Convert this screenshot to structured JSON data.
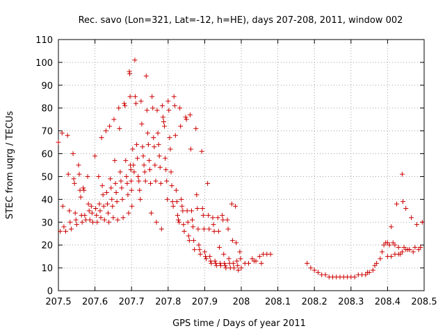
{
  "chart_data": {
    "type": "scatter",
    "title": "Rec. savo (Lon=321, Lat=-12, h=HE), days 207-208, 2011, window 002",
    "xlabel": "GPS time / Days of year 2011",
    "ylabel": "STEC from uqrg / TECUs",
    "xlim": [
      207.5,
      208.5
    ],
    "ylim": [
      0,
      110
    ],
    "xticks": [
      207.5,
      207.6,
      207.7,
      207.8,
      207.9,
      208.0,
      208.1,
      208.2,
      208.3,
      208.4,
      208.5
    ],
    "xtick_labels": [
      "207.5",
      "207.6",
      "207.7",
      "207.8",
      "207.9",
      "208",
      "208.1",
      "208.2",
      "208.3",
      "208.4",
      "208.5"
    ],
    "yticks": [
      0,
      10,
      20,
      30,
      40,
      50,
      60,
      70,
      80,
      90,
      100,
      110
    ],
    "ytick_labels": [
      "0",
      "10",
      "20",
      "30",
      "40",
      "50",
      "60",
      "70",
      "80",
      "90",
      "100",
      "110"
    ],
    "marker": "+",
    "color": "#cc0000",
    "points": [
      [
        207.5,
        65
      ],
      [
        207.505,
        26
      ],
      [
        207.51,
        69
      ],
      [
        207.512,
        37
      ],
      [
        207.515,
        28
      ],
      [
        207.52,
        26
      ],
      [
        207.525,
        68
      ],
      [
        207.527,
        51
      ],
      [
        207.53,
        35
      ],
      [
        207.532,
        30
      ],
      [
        207.535,
        27
      ],
      [
        207.54,
        60
      ],
      [
        207.542,
        49
      ],
      [
        207.544,
        47
      ],
      [
        207.546,
        34
      ],
      [
        207.548,
        31
      ],
      [
        207.55,
        29
      ],
      [
        207.555,
        55
      ],
      [
        207.557,
        51
      ],
      [
        207.559,
        44
      ],
      [
        207.561,
        41
      ],
      [
        207.563,
        33
      ],
      [
        207.565,
        30
      ],
      [
        207.568,
        45
      ],
      [
        207.57,
        44
      ],
      [
        207.572,
        33
      ],
      [
        207.575,
        31
      ],
      [
        207.58,
        50
      ],
      [
        207.582,
        38
      ],
      [
        207.584,
        35
      ],
      [
        207.586,
        31
      ],
      [
        207.59,
        37
      ],
      [
        207.592,
        34
      ],
      [
        207.594,
        30
      ],
      [
        207.6,
        59
      ],
      [
        207.602,
        36
      ],
      [
        207.604,
        33
      ],
      [
        207.606,
        30
      ],
      [
        207.61,
        50
      ],
      [
        207.612,
        38
      ],
      [
        207.614,
        35
      ],
      [
        207.616,
        32
      ],
      [
        207.618,
        67
      ],
      [
        207.62,
        46
      ],
      [
        207.622,
        42
      ],
      [
        207.624,
        37
      ],
      [
        207.626,
        31
      ],
      [
        207.63,
        70
      ],
      [
        207.632,
        43
      ],
      [
        207.634,
        38
      ],
      [
        207.636,
        34
      ],
      [
        207.638,
        30
      ],
      [
        207.64,
        72
      ],
      [
        207.642,
        49
      ],
      [
        207.644,
        45
      ],
      [
        207.646,
        40
      ],
      [
        207.648,
        37
      ],
      [
        207.65,
        32
      ],
      [
        207.652,
        75
      ],
      [
        207.654,
        57
      ],
      [
        207.656,
        47
      ],
      [
        207.658,
        43
      ],
      [
        207.66,
        39
      ],
      [
        207.662,
        31
      ],
      [
        207.665,
        80
      ],
      [
        207.667,
        71
      ],
      [
        207.669,
        52
      ],
      [
        207.671,
        48
      ],
      [
        207.673,
        45
      ],
      [
        207.675,
        40
      ],
      [
        207.677,
        32
      ],
      [
        207.68,
        82
      ],
      [
        207.682,
        81
      ],
      [
        207.684,
        57
      ],
      [
        207.686,
        50
      ],
      [
        207.688,
        47
      ],
      [
        207.69,
        42
      ],
      [
        207.692,
        34
      ],
      [
        207.694,
        96
      ],
      [
        207.695,
        95
      ],
      [
        207.696,
        85
      ],
      [
        207.697,
        55
      ],
      [
        207.698,
        53
      ],
      [
        207.699,
        48
      ],
      [
        207.7,
        44
      ],
      [
        207.701,
        37
      ],
      [
        207.703,
        62
      ],
      [
        207.705,
        55
      ],
      [
        207.707,
        52
      ],
      [
        207.709,
        101
      ],
      [
        207.71,
        85
      ],
      [
        207.712,
        82
      ],
      [
        207.714,
        64
      ],
      [
        207.716,
        58
      ],
      [
        207.718,
        50
      ],
      [
        207.72,
        48
      ],
      [
        207.722,
        44
      ],
      [
        207.724,
        40
      ],
      [
        207.726,
        83
      ],
      [
        207.728,
        73
      ],
      [
        207.73,
        63
      ],
      [
        207.732,
        59
      ],
      [
        207.734,
        55
      ],
      [
        207.736,
        52
      ],
      [
        207.738,
        48
      ],
      [
        207.74,
        94
      ],
      [
        207.742,
        79
      ],
      [
        207.744,
        69
      ],
      [
        207.746,
        64
      ],
      [
        207.748,
        57
      ],
      [
        207.75,
        53
      ],
      [
        207.752,
        47
      ],
      [
        207.754,
        34
      ],
      [
        207.756,
        85
      ],
      [
        207.758,
        80
      ],
      [
        207.76,
        67
      ],
      [
        207.762,
        63
      ],
      [
        207.764,
        55
      ],
      [
        207.766,
        48
      ],
      [
        207.768,
        30
      ],
      [
        207.77,
        79
      ],
      [
        207.772,
        69
      ],
      [
        207.774,
        64
      ],
      [
        207.776,
        59
      ],
      [
        207.778,
        54
      ],
      [
        207.78,
        47
      ],
      [
        207.782,
        27
      ],
      [
        207.784,
        81
      ],
      [
        207.786,
        76
      ],
      [
        207.788,
        74
      ],
      [
        207.79,
        72
      ],
      [
        207.792,
        58
      ],
      [
        207.794,
        53
      ],
      [
        207.796,
        48
      ],
      [
        207.798,
        40
      ],
      [
        207.8,
        83
      ],
      [
        207.802,
        79
      ],
      [
        207.804,
        67
      ],
      [
        207.806,
        62
      ],
      [
        207.808,
        52
      ],
      [
        207.81,
        46
      ],
      [
        207.812,
        39
      ],
      [
        207.814,
        37
      ],
      [
        207.816,
        85
      ],
      [
        207.818,
        81
      ],
      [
        207.82,
        68
      ],
      [
        207.822,
        44
      ],
      [
        207.824,
        39
      ],
      [
        207.826,
        33
      ],
      [
        207.828,
        31
      ],
      [
        207.83,
        30
      ],
      [
        207.832,
        80
      ],
      [
        207.834,
        72
      ],
      [
        207.836,
        40
      ],
      [
        207.838,
        37
      ],
      [
        207.84,
        35
      ],
      [
        207.842,
        29
      ],
      [
        207.844,
        26
      ],
      [
        207.848,
        76
      ],
      [
        207.85,
        75
      ],
      [
        207.852,
        35
      ],
      [
        207.854,
        30
      ],
      [
        207.856,
        24
      ],
      [
        207.858,
        22
      ],
      [
        207.86,
        77
      ],
      [
        207.862,
        62
      ],
      [
        207.864,
        35
      ],
      [
        207.866,
        31
      ],
      [
        207.868,
        28
      ],
      [
        207.87,
        22
      ],
      [
        207.872,
        18
      ],
      [
        207.876,
        71
      ],
      [
        207.878,
        42
      ],
      [
        207.88,
        36
      ],
      [
        207.882,
        27
      ],
      [
        207.884,
        20
      ],
      [
        207.886,
        18
      ],
      [
        207.888,
        16
      ],
      [
        207.892,
        61
      ],
      [
        207.894,
        36
      ],
      [
        207.896,
        33
      ],
      [
        207.898,
        27
      ],
      [
        207.9,
        17
      ],
      [
        207.902,
        15
      ],
      [
        207.904,
        14
      ],
      [
        207.908,
        47
      ],
      [
        207.91,
        33
      ],
      [
        207.912,
        27
      ],
      [
        207.914,
        15
      ],
      [
        207.916,
        13
      ],
      [
        207.918,
        12
      ],
      [
        207.922,
        32
      ],
      [
        207.924,
        29
      ],
      [
        207.926,
        26
      ],
      [
        207.928,
        13
      ],
      [
        207.93,
        12
      ],
      [
        207.932,
        11
      ],
      [
        207.936,
        32
      ],
      [
        207.938,
        26
      ],
      [
        207.94,
        19
      ],
      [
        207.942,
        12
      ],
      [
        207.944,
        11
      ],
      [
        207.948,
        33
      ],
      [
        207.95,
        31
      ],
      [
        207.952,
        16
      ],
      [
        207.954,
        12
      ],
      [
        207.956,
        11
      ],
      [
        207.958,
        10
      ],
      [
        207.962,
        31
      ],
      [
        207.964,
        27
      ],
      [
        207.966,
        14
      ],
      [
        207.968,
        12
      ],
      [
        207.97,
        10
      ],
      [
        207.974,
        38
      ],
      [
        207.976,
        22
      ],
      [
        207.978,
        12
      ],
      [
        207.98,
        10
      ],
      [
        207.984,
        37
      ],
      [
        207.986,
        21
      ],
      [
        207.988,
        13
      ],
      [
        207.99,
        11
      ],
      [
        207.992,
        9
      ],
      [
        207.996,
        17
      ],
      [
        207.998,
        14
      ],
      [
        208.0,
        10
      ],
      [
        208.01,
        12
      ],
      [
        208.02,
        12
      ],
      [
        208.03,
        14
      ],
      [
        208.035,
        13
      ],
      [
        208.04,
        13
      ],
      [
        208.05,
        15
      ],
      [
        208.055,
        12
      ],
      [
        208.06,
        16
      ],
      [
        208.07,
        16
      ],
      [
        208.08,
        16
      ],
      [
        208.18,
        12
      ],
      [
        208.19,
        10
      ],
      [
        208.2,
        9
      ],
      [
        208.21,
        8
      ],
      [
        208.22,
        7
      ],
      [
        208.23,
        7
      ],
      [
        208.24,
        6
      ],
      [
        208.25,
        6
      ],
      [
        208.26,
        6
      ],
      [
        208.27,
        6
      ],
      [
        208.28,
        6
      ],
      [
        208.29,
        6
      ],
      [
        208.3,
        6
      ],
      [
        208.31,
        6
      ],
      [
        208.32,
        7
      ],
      [
        208.33,
        7
      ],
      [
        208.34,
        7
      ],
      [
        208.345,
        8
      ],
      [
        208.35,
        8
      ],
      [
        208.36,
        9
      ],
      [
        208.365,
        11
      ],
      [
        208.37,
        12
      ],
      [
        208.38,
        14
      ],
      [
        208.385,
        17
      ],
      [
        208.39,
        20
      ],
      [
        208.395,
        21
      ],
      [
        208.4,
        21
      ],
      [
        208.405,
        20
      ],
      [
        208.41,
        28
      ],
      [
        208.415,
        21
      ],
      [
        208.42,
        20
      ],
      [
        208.425,
        38
      ],
      [
        208.43,
        19
      ],
      [
        208.435,
        16
      ],
      [
        208.44,
        51
      ],
      [
        208.442,
        39
      ],
      [
        208.445,
        19
      ],
      [
        208.45,
        36
      ],
      [
        208.455,
        18
      ],
      [
        208.46,
        18
      ],
      [
        208.465,
        32
      ],
      [
        208.47,
        17
      ],
      [
        208.475,
        19
      ],
      [
        208.48,
        29
      ],
      [
        208.485,
        18
      ],
      [
        208.49,
        19
      ],
      [
        208.495,
        30
      ],
      [
        208.4,
        15
      ],
      [
        208.41,
        15
      ],
      [
        208.42,
        16
      ],
      [
        208.43,
        16
      ],
      [
        208.44,
        17
      ],
      [
        208.45,
        18
      ],
      [
        208.46,
        18
      ]
    ]
  }
}
